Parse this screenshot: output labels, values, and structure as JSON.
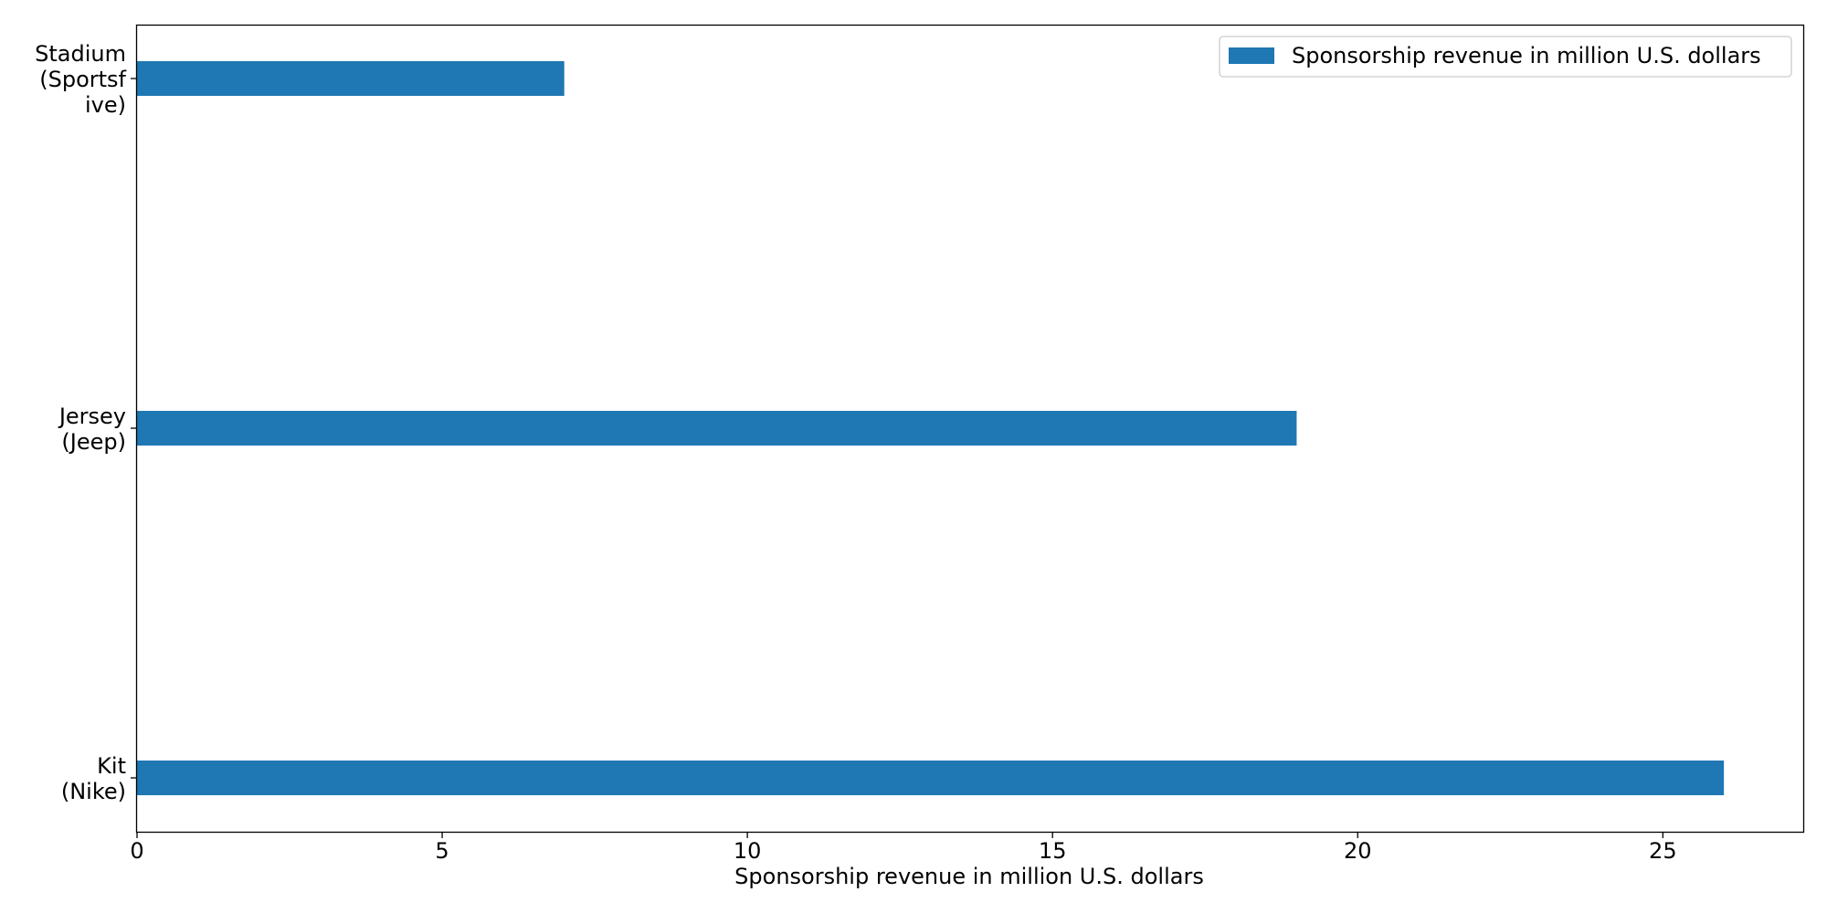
{
  "chart_data": {
    "type": "bar",
    "orientation": "horizontal",
    "categories": [
      [
        "Stadium",
        "(Sportsf",
        "ive)"
      ],
      [
        "Jersey",
        "(Jeep)"
      ],
      [
        "Kit",
        "(Nike)"
      ]
    ],
    "values": [
      7,
      19,
      26
    ],
    "xlabel": "Sponsorship revenue in million U.S. dollars",
    "ylabel": "",
    "title": "",
    "xlim": [
      0,
      27.3
    ],
    "xticks": [
      0,
      5,
      10,
      15,
      20,
      25
    ],
    "xtick_labels": [
      "0",
      "5",
      "10",
      "15",
      "20",
      "25"
    ],
    "grid": false,
    "legend": {
      "position": "top-right",
      "entries": [
        "Sponsorship revenue in million U.S. dollars"
      ]
    },
    "colors": {
      "bar": "#1f77b4",
      "axis": "#000000",
      "legend_border": "#cccccc"
    }
  }
}
